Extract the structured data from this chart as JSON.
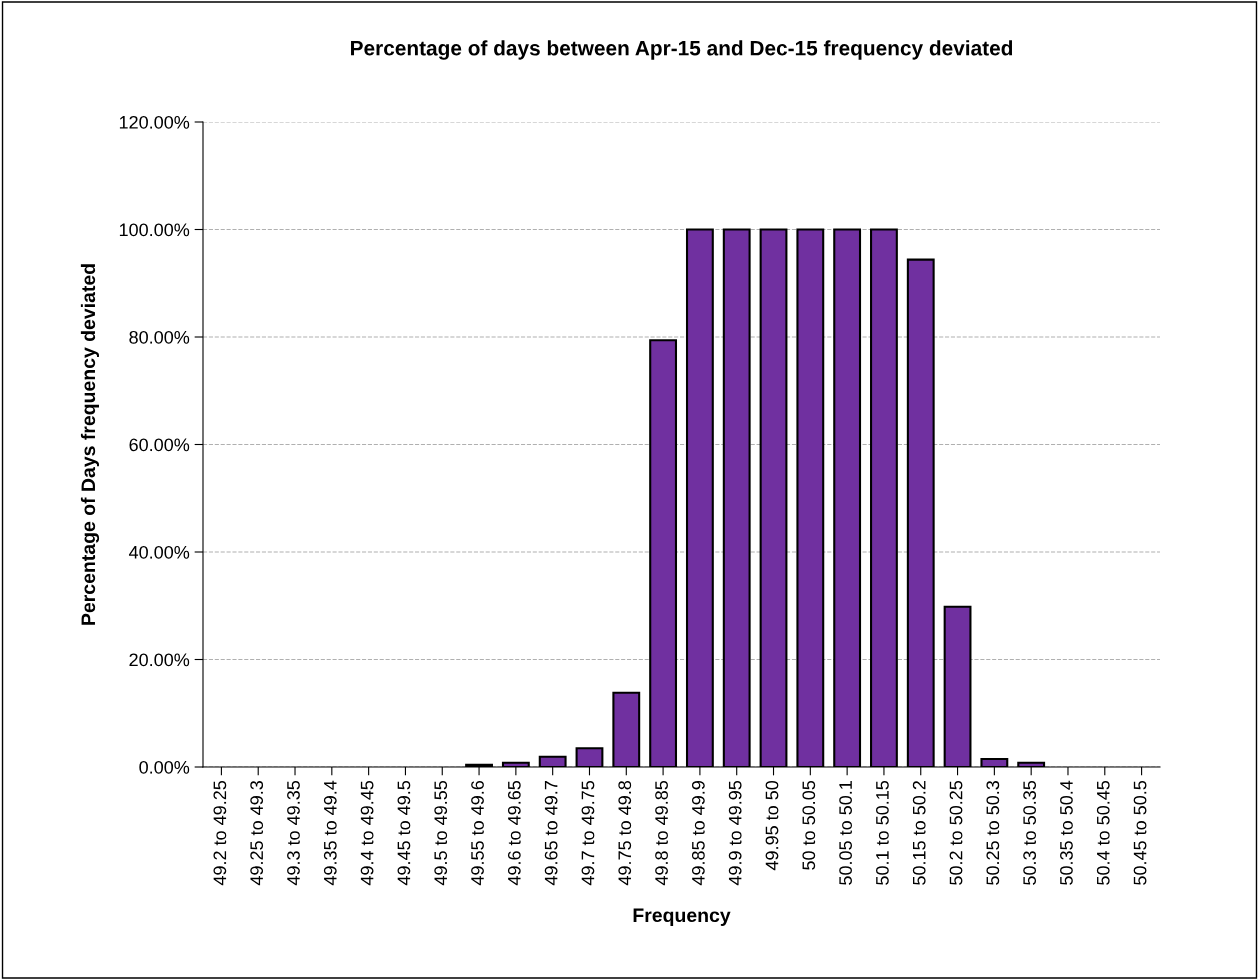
{
  "chart_data": {
    "type": "bar",
    "title": "Percentage of days between Apr-15 and Dec-15 frequency deviated",
    "xlabel": "Frequency",
    "ylabel": "Percentage of Days frequency deviated",
    "categories": [
      "49.2 to 49.25",
      "49.25 to 49.3",
      "49.3 to 49.35",
      "49.35 to 49.4",
      "49.4 to 49.45",
      "49.45 to 49.5",
      "49.5 to 49.55",
      "49.55 to 49.6",
      "49.6 to 49.65",
      "49.65 to 49.7",
      "49.7 to 49.75",
      "49.75 to 49.8",
      "49.8 to 49.85",
      "49.85 to 49.9",
      "49.9 to 49.95",
      "49.95 to 50",
      "50 to 50.05",
      "50.05 to 50.1",
      "50.1 to 50.15",
      "50.15 to 50.2",
      "50.2 to 50.25",
      "50.25 to 50.3",
      "50.3 to 50.35",
      "50.35 to 50.4",
      "50.4 to 50.45",
      "50.45 to 50.5"
    ],
    "values": [
      0,
      0,
      0,
      0,
      0,
      0,
      0,
      0.4,
      0.8,
      1.9,
      3.5,
      13.8,
      79.4,
      100,
      100,
      100,
      100,
      100,
      100,
      94.4,
      29.8,
      1.5,
      0.8,
      0,
      0,
      0
    ],
    "color": "#7030a0",
    "ylim": [
      0,
      120
    ],
    "yticks": [
      {
        "value": 0,
        "label": "0.00%"
      },
      {
        "value": 20,
        "label": "20.00%"
      },
      {
        "value": 40,
        "label": "40.00%"
      },
      {
        "value": 60,
        "label": "60.00%"
      },
      {
        "value": 80,
        "label": "80.00%"
      },
      {
        "value": 100,
        "label": "100.00%"
      },
      {
        "value": 120,
        "label": "120.00%"
      }
    ],
    "grid": "y",
    "legend": false
  }
}
